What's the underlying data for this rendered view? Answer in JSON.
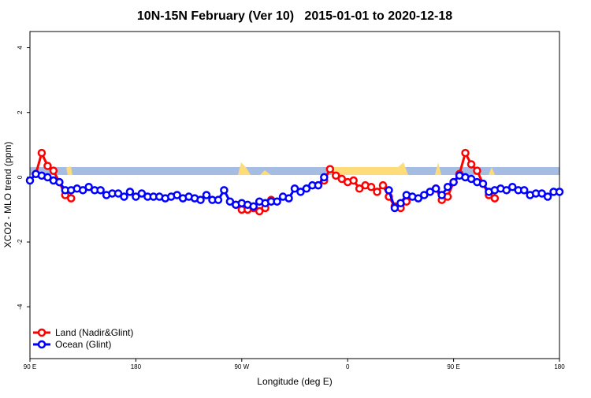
{
  "chart_data": {
    "type": "line",
    "title": "10N-15N February (Ver 10)   2015-01-01 to 2020-12-18",
    "x_label": "Longitude (deg E)",
    "y_label": "XCO2 - MLO trend (ppm)",
    "x": [
      90,
      95,
      100,
      105,
      110,
      115,
      120,
      125,
      130,
      135,
      140,
      145,
      150,
      155,
      160,
      165,
      170,
      175,
      180,
      185,
      190,
      195,
      200,
      205,
      210,
      215,
      220,
      225,
      230,
      235,
      240,
      245,
      250,
      255,
      260,
      265,
      270,
      275,
      280,
      285,
      290,
      295,
      300,
      305,
      310,
      315,
      320,
      325,
      330,
      335,
      340,
      345,
      350,
      355,
      360,
      365,
      370,
      375,
      380,
      385,
      390,
      395,
      400,
      405,
      410,
      415,
      420,
      425,
      430,
      435,
      440,
      445,
      450,
      455,
      460,
      465,
      470,
      475,
      480,
      485,
      490,
      495,
      500,
      505,
      510,
      515,
      520,
      525,
      530,
      535,
      540
    ],
    "series": [
      {
        "name": "Land (Nadir&Glint)",
        "color": "#ff0000",
        "values": [
          null,
          0.1,
          0.75,
          0.35,
          0.2,
          -0.15,
          -0.55,
          -0.65,
          null,
          null,
          null,
          null,
          null,
          null,
          null,
          null,
          null,
          null,
          null,
          null,
          null,
          null,
          null,
          null,
          null,
          null,
          null,
          null,
          null,
          null,
          null,
          null,
          null,
          null,
          null,
          -0.85,
          -1.0,
          -1.0,
          -0.95,
          -1.05,
          -0.95,
          -0.7,
          null,
          null,
          null,
          null,
          null,
          null,
          null,
          -0.25,
          -0.1,
          0.25,
          0.05,
          -0.05,
          -0.15,
          -0.1,
          -0.35,
          -0.25,
          -0.3,
          -0.45,
          -0.25,
          -0.6,
          -0.9,
          -0.95,
          -0.75,
          null,
          null,
          null,
          null,
          -0.35,
          -0.7,
          -0.6,
          -0.15,
          0.1,
          0.75,
          0.4,
          0.2,
          -0.2,
          -0.55,
          -0.65,
          null,
          null,
          null,
          null,
          null,
          null,
          null,
          null,
          null,
          null,
          null
        ]
      },
      {
        "name": "Ocean (Glint)",
        "color": "#0000ff",
        "values": [
          -0.1,
          0.1,
          0.05,
          0,
          -0.1,
          -0.15,
          -0.4,
          -0.4,
          -0.35,
          -0.4,
          -0.3,
          -0.4,
          -0.4,
          -0.55,
          -0.5,
          -0.5,
          -0.6,
          -0.45,
          -0.6,
          -0.5,
          -0.6,
          -0.6,
          -0.6,
          -0.65,
          -0.6,
          -0.55,
          -0.65,
          -0.6,
          -0.65,
          -0.7,
          -0.55,
          -0.7,
          -0.7,
          -0.4,
          -0.75,
          -0.85,
          -0.8,
          -0.85,
          -0.9,
          -0.75,
          -0.8,
          -0.75,
          -0.75,
          -0.6,
          -0.65,
          -0.35,
          -0.45,
          -0.35,
          -0.25,
          -0.25,
          0,
          null,
          null,
          null,
          null,
          null,
          null,
          null,
          null,
          null,
          null,
          -0.4,
          -0.95,
          -0.8,
          -0.55,
          -0.6,
          -0.65,
          -0.55,
          -0.45,
          -0.35,
          -0.55,
          -0.3,
          -0.15,
          0.05,
          0,
          -0.05,
          -0.15,
          -0.2,
          -0.45,
          -0.4,
          -0.35,
          -0.4,
          -0.3,
          -0.4,
          -0.4,
          -0.55,
          -0.5,
          -0.5,
          -0.6,
          -0.45,
          -0.45
        ]
      }
    ],
    "xlim": [
      90,
      540
    ],
    "ylim": [
      -5.6,
      4.5
    ],
    "xticks": [
      {
        "value": 90,
        "label": "90 E"
      },
      180,
      {
        "value": 270,
        "label": "90 W"
      },
      {
        "value": 360,
        "label": "0"
      },
      {
        "value": 450,
        "label": "90 E"
      },
      {
        "value": 540,
        "label": "180"
      }
    ],
    "yticks": [
      4,
      2,
      0,
      -2,
      -4
    ],
    "legend": "bottom-left"
  }
}
